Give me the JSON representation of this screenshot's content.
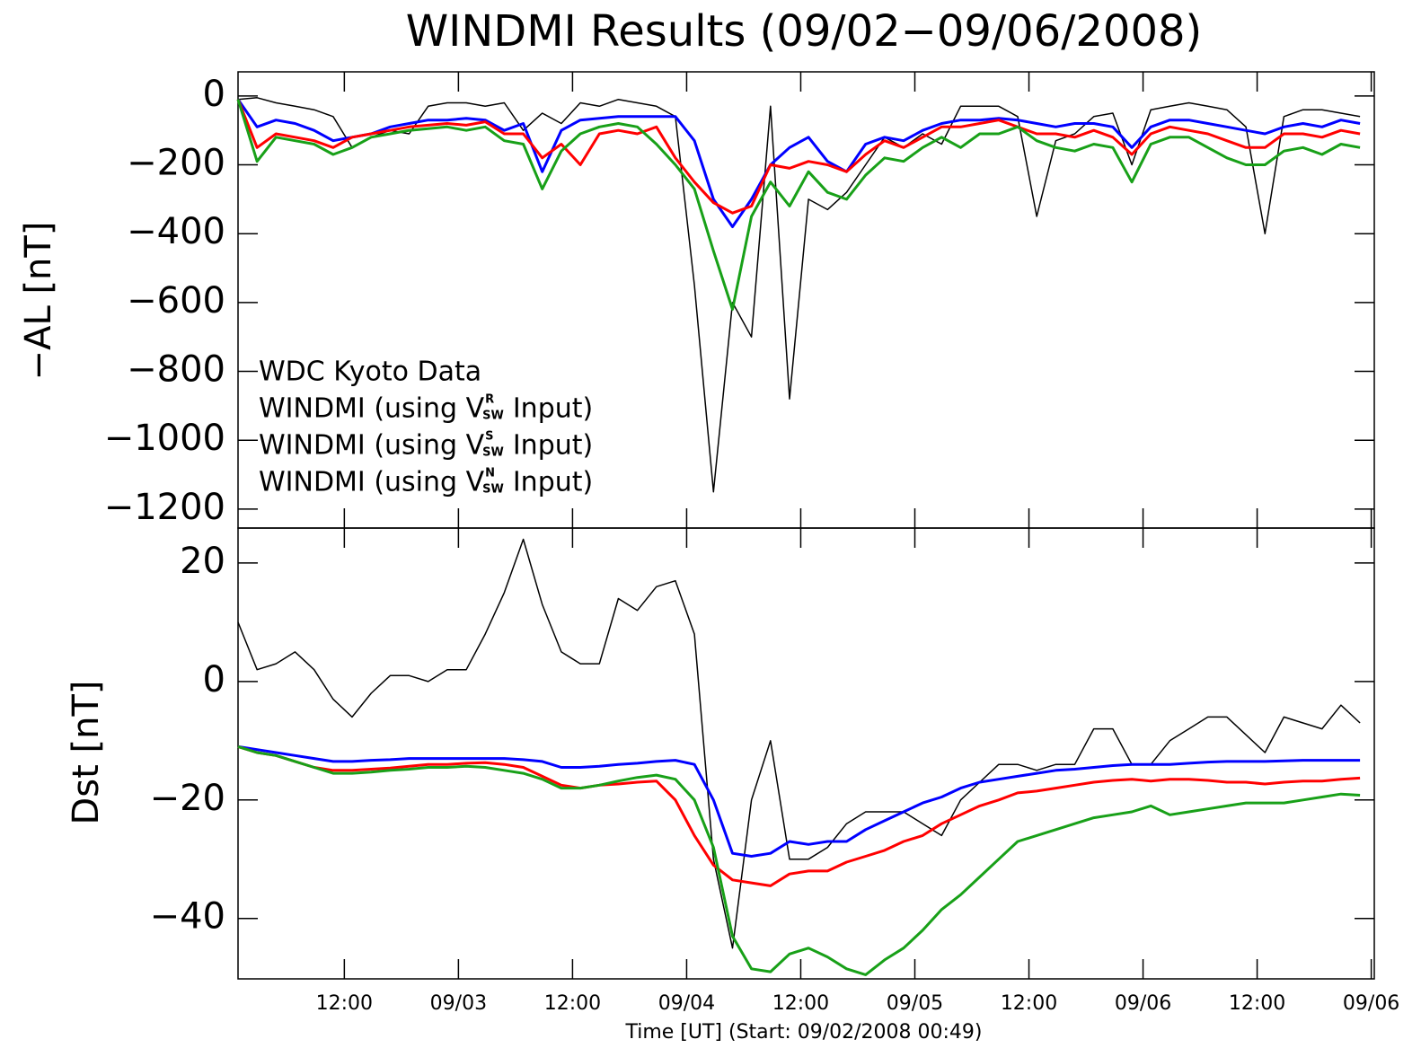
{
  "chart_data": [
    {
      "type": "line",
      "title": "WINDMI Results (09/02−09/06/2008)",
      "ylabel": "−AL [nT]",
      "legend": "left",
      "x": [
        0,
        2,
        4,
        6,
        8,
        10,
        12,
        14,
        16,
        18,
        20,
        22,
        24,
        26,
        28,
        30,
        32,
        34,
        36,
        38,
        40,
        42,
        44,
        46,
        48,
        50,
        52,
        54,
        56,
        58,
        60,
        62,
        64,
        66,
        68,
        70,
        72,
        74,
        76,
        78,
        80,
        82,
        84,
        86,
        88,
        90,
        92,
        94,
        96,
        98,
        100,
        102,
        104,
        106,
        108,
        110,
        112,
        114,
        116,
        118
      ],
      "xlim": [
        0,
        119.5
      ],
      "ylim": [
        -1255,
        70
      ],
      "yticks": [
        0,
        {
          "value": -200,
          "label": "−200"
        },
        {
          "value": -400,
          "label": "−400"
        },
        {
          "value": -600,
          "label": "−600"
        },
        {
          "value": -800,
          "label": "−800"
        },
        {
          "value": -1000,
          "label": "−1000"
        },
        {
          "value": -1200,
          "label": "−1200"
        }
      ],
      "series": [
        {
          "name": "WDC Kyoto Data",
          "color": "#000000",
          "values": [
            -10,
            -5,
            -20,
            -30,
            -40,
            -60,
            -150,
            -120,
            -100,
            -110,
            -30,
            -20,
            -20,
            -30,
            -20,
            -100,
            -50,
            -80,
            -20,
            -30,
            -10,
            -20,
            -30,
            -60,
            -550,
            -1150,
            -600,
            -700,
            -30,
            -880,
            -300,
            -330,
            -280,
            -200,
            -120,
            -150,
            -110,
            -140,
            -30,
            -30,
            -30,
            -60,
            -350,
            -130,
            -110,
            -60,
            -50,
            -200,
            -40,
            -30,
            -20,
            -30,
            -40,
            -90,
            -400,
            -60,
            -40,
            -40,
            -50,
            -60
          ]
        },
        {
          "name": "WINDMI (using V",
          "name_sup": "R",
          "name_sub": "SW",
          "name_end": "Input)",
          "color": "#0000ff",
          "values": [
            -10,
            -90,
            -70,
            -80,
            -100,
            -130,
            -120,
            -110,
            -90,
            -80,
            -70,
            -70,
            -65,
            -70,
            -100,
            -80,
            -220,
            -100,
            -70,
            -65,
            -60,
            -60,
            -60,
            -60,
            -130,
            -300,
            -380,
            -300,
            -200,
            -150,
            -120,
            -190,
            -220,
            -140,
            -120,
            -130,
            -100,
            -80,
            -70,
            -70,
            -65,
            -70,
            -80,
            -90,
            -80,
            -80,
            -90,
            -150,
            -90,
            -70,
            -70,
            -80,
            -90,
            -100,
            -110,
            -90,
            -80,
            -90,
            -70,
            -80
          ]
        },
        {
          "name": "WINDMI (using V",
          "name_sup": "S",
          "name_sub": "SW",
          "name_end": "Input)",
          "color": "#ff0000",
          "values": [
            -10,
            -150,
            -110,
            -120,
            -130,
            -150,
            -120,
            -110,
            -100,
            -90,
            -85,
            -80,
            -85,
            -75,
            -110,
            -110,
            -180,
            -140,
            -200,
            -110,
            -100,
            -110,
            -90,
            -180,
            -250,
            -310,
            -340,
            -320,
            -200,
            -210,
            -190,
            -200,
            -220,
            -170,
            -130,
            -150,
            -120,
            -90,
            -90,
            -80,
            -70,
            -90,
            -110,
            -110,
            -120,
            -100,
            -120,
            -170,
            -110,
            -90,
            -100,
            -110,
            -130,
            -150,
            -150,
            -110,
            -110,
            -120,
            -100,
            -110
          ]
        },
        {
          "name": "WINDMI (using V",
          "name_sup": "N",
          "name_sub": "SW",
          "name_end": "Input)",
          "color": "#18a018",
          "values": [
            -10,
            -190,
            -120,
            -130,
            -140,
            -170,
            -150,
            -120,
            -110,
            -100,
            -95,
            -90,
            -100,
            -90,
            -130,
            -140,
            -270,
            -160,
            -110,
            -90,
            -80,
            -90,
            -140,
            -200,
            -270,
            -450,
            -620,
            -350,
            -250,
            -320,
            -220,
            -280,
            -300,
            -230,
            -180,
            -190,
            -150,
            -120,
            -150,
            -110,
            -110,
            -90,
            -130,
            -150,
            -160,
            -140,
            -150,
            -250,
            -140,
            -120,
            -120,
            -150,
            -180,
            -200,
            -200,
            -160,
            -150,
            -170,
            -140,
            -150
          ]
        }
      ]
    },
    {
      "type": "line",
      "ylabel": "Dst [nT]",
      "xlabel": "Time [UT] (Start: 09/02/2008 00:49)",
      "x": [
        0,
        2,
        4,
        6,
        8,
        10,
        12,
        14,
        16,
        18,
        20,
        22,
        24,
        26,
        28,
        30,
        32,
        34,
        36,
        38,
        40,
        42,
        44,
        46,
        48,
        50,
        52,
        54,
        56,
        58,
        60,
        62,
        64,
        66,
        68,
        70,
        72,
        74,
        76,
        78,
        80,
        82,
        84,
        86,
        88,
        90,
        92,
        94,
        96,
        98,
        100,
        102,
        104,
        106,
        108,
        110,
        112,
        114,
        116,
        118
      ],
      "xlim": [
        0,
        119.5
      ],
      "ylim": [
        -50.2,
        25.9
      ],
      "xticks": [
        {
          "value": 11.18,
          "label": "12:00"
        },
        {
          "value": 23.18,
          "label": "09/03"
        },
        {
          "value": 35.18,
          "label": "12:00"
        },
        {
          "value": 47.18,
          "label": "09/04"
        },
        {
          "value": 59.18,
          "label": "12:00"
        },
        {
          "value": 71.18,
          "label": "09/05"
        },
        {
          "value": 83.18,
          "label": "12:00"
        },
        {
          "value": 95.18,
          "label": "09/06"
        },
        {
          "value": 107.18,
          "label": "12:00"
        },
        {
          "value": 119.18,
          "label": "09/06"
        }
      ],
      "yticks": [
        20,
        0,
        {
          "value": -20,
          "label": "−20"
        },
        {
          "value": -40,
          "label": "−40"
        }
      ],
      "series": [
        {
          "color": "#000000",
          "values": [
            10,
            2,
            3,
            5,
            2,
            -3,
            -6,
            -2,
            1,
            1,
            0,
            2,
            2,
            8,
            15,
            24,
            13,
            5,
            3,
            3,
            14,
            12,
            16,
            17,
            8,
            -30,
            -45,
            -20,
            -10,
            -30,
            -30,
            -28,
            -24,
            -22,
            -22,
            -22,
            -24,
            -26,
            -20,
            -17,
            -14,
            -14,
            -15,
            -14,
            -14,
            -8,
            -8,
            -14,
            -14,
            -10,
            -8,
            -6,
            -6,
            -9,
            -12,
            -6,
            -7,
            -8,
            -4,
            -7
          ]
        },
        {
          "color": "#0000ff",
          "values": [
            -11,
            -11.5,
            -12,
            -12.5,
            -13,
            -13.5,
            -13.5,
            -13.3,
            -13.2,
            -13,
            -13,
            -13,
            -13,
            -13,
            -13,
            -13.2,
            -13.5,
            -14.5,
            -14.5,
            -14.3,
            -14,
            -13.8,
            -13.5,
            -13.3,
            -14,
            -20,
            -29,
            -29.5,
            -29,
            -27,
            -27.5,
            -27,
            -27,
            -25,
            -23.5,
            -22,
            -20.5,
            -19.5,
            -18,
            -17,
            -16.5,
            -16,
            -15.5,
            -15,
            -14.8,
            -14.5,
            -14.2,
            -14,
            -14,
            -14,
            -13.8,
            -13.6,
            -13.5,
            -13.5,
            -13.5,
            -13.4,
            -13.3,
            -13.3,
            -13.3,
            -13.3
          ]
        },
        {
          "color": "#ff0000",
          "values": [
            -11,
            -12,
            -12.5,
            -13.5,
            -14.5,
            -15,
            -15,
            -14.8,
            -14.6,
            -14.3,
            -14,
            -14,
            -13.8,
            -13.7,
            -14,
            -14.5,
            -16,
            -17.5,
            -18,
            -17.5,
            -17.3,
            -17,
            -16.8,
            -20,
            -26,
            -31,
            -33.5,
            -34,
            -34.5,
            -32.5,
            -32,
            -32,
            -30.5,
            -29.5,
            -28.5,
            -27,
            -26,
            -24,
            -22.5,
            -21,
            -20,
            -18.8,
            -18.5,
            -18,
            -17.5,
            -17,
            -16.7,
            -16.5,
            -16.8,
            -16.5,
            -16.5,
            -16.7,
            -17,
            -17,
            -17.3,
            -17,
            -16.8,
            -16.8,
            -16.5,
            -16.3
          ]
        },
        {
          "color": "#18a018",
          "values": [
            -11,
            -12,
            -12.5,
            -13.5,
            -14.5,
            -15.5,
            -15.5,
            -15.3,
            -15,
            -14.8,
            -14.5,
            -14.5,
            -14.3,
            -14.5,
            -15,
            -15.5,
            -16.5,
            -18,
            -18,
            -17.5,
            -16.8,
            -16.2,
            -15.8,
            -16.5,
            -20,
            -28,
            -43,
            -48.5,
            -49,
            -46,
            -45,
            -46.5,
            -48.5,
            -49.5,
            -47,
            -45,
            -42,
            -38.5,
            -36,
            -33,
            -30,
            -27,
            -26,
            -25,
            -24,
            -23,
            -22.5,
            -22,
            -21,
            -22.5,
            -22,
            -21.5,
            -21,
            -20.5,
            -20.5,
            -20.5,
            -20,
            -19.5,
            -19,
            -19.2
          ]
        }
      ]
    }
  ]
}
